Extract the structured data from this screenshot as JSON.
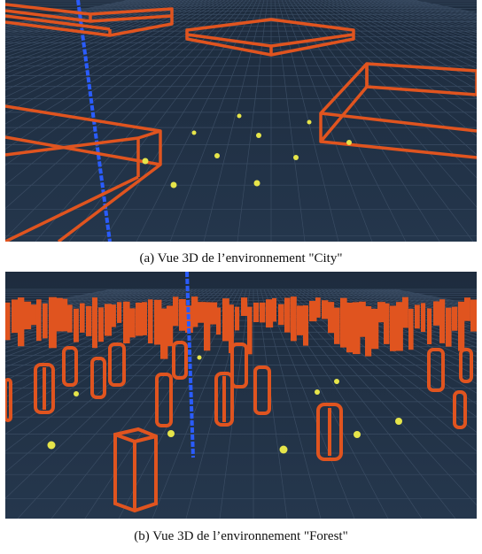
{
  "figure": {
    "panel_a": {
      "caption": "(a) Vue 3D de l’environnement \"City\""
    },
    "panel_b": {
      "caption": "(b) Vue 3D de l’environnement \"Forest\""
    }
  },
  "colors": {
    "background": "#223247",
    "grid": "#3a4c63",
    "obstacle": "#e0541f",
    "waypoint": "#e6e54a",
    "axis": "#2a5cff"
  }
}
